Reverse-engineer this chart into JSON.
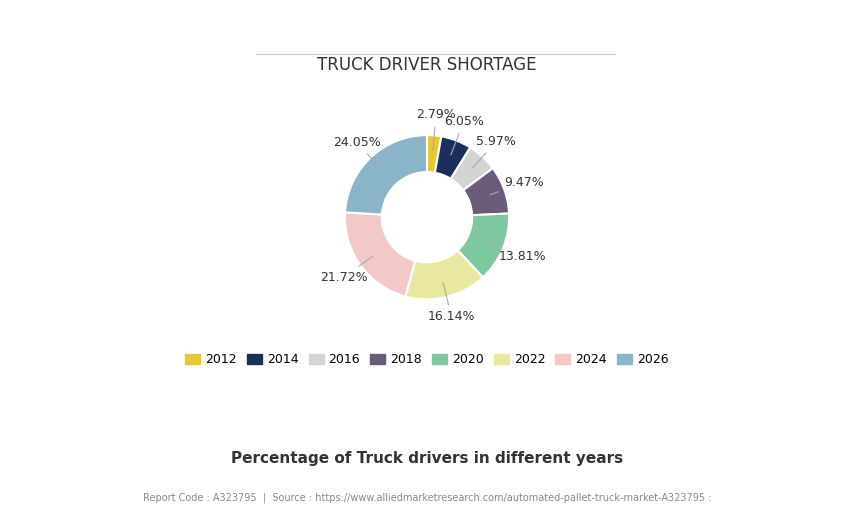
{
  "title": "TRUCK DRIVER SHORTAGE",
  "xlabel": "Percentage of Truck drivers in different years",
  "footer": "Report Code : A323795  |  Source : https://www.alliedmarketresearch.com/automated-pallet-truck-market-A323795 :",
  "labels": [
    "2012",
    "2014",
    "2016",
    "2018",
    "2020",
    "2022",
    "2024",
    "2026"
  ],
  "values": [
    2.79,
    6.05,
    5.97,
    9.47,
    13.81,
    16.14,
    21.72,
    24.05
  ],
  "colors": [
    "#e8c832",
    "#1a2f5a",
    "#d4d4d4",
    "#6b5b7b",
    "#7ec8a0",
    "#e8e8a0",
    "#f2c8c8",
    "#8ab4c8"
  ],
  "pct_labels": [
    "2.79%",
    "6.05%",
    "5.97%",
    "9.47%",
    "13.81%",
    "16.14%",
    "21.72%",
    "24.05%"
  ],
  "background_color": "#ffffff",
  "wedge_edge_color": "#ffffff",
  "title_fontsize": 12,
  "label_fontsize": 9,
  "legend_fontsize": 9,
  "footer_fontsize": 7,
  "xlabel_fontsize": 11
}
